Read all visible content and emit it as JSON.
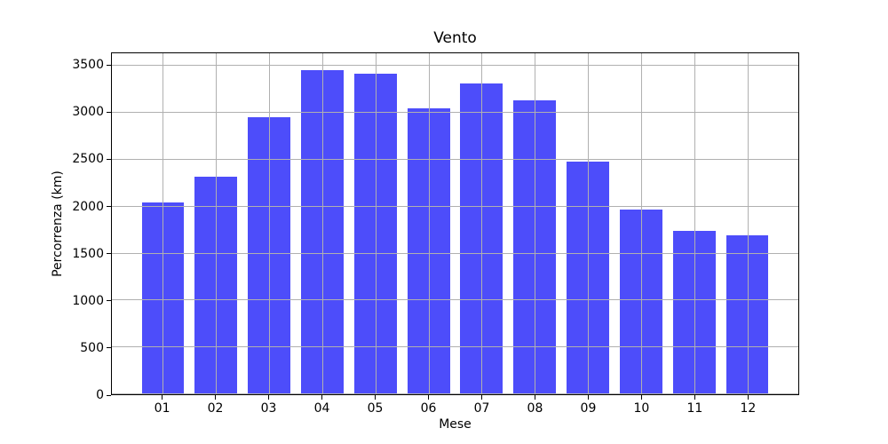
{
  "chart_data": {
    "type": "bar",
    "title": "Vento",
    "xlabel": "Mese",
    "ylabel": "Percorrenza (km)",
    "categories": [
      "01",
      "02",
      "03",
      "04",
      "05",
      "06",
      "07",
      "08",
      "09",
      "10",
      "11",
      "12"
    ],
    "values": [
      2040,
      2315,
      2950,
      3455,
      3420,
      3050,
      3310,
      3130,
      2475,
      1970,
      1740,
      1690
    ],
    "yticks": [
      0,
      500,
      1000,
      1500,
      2000,
      2500,
      3000,
      3500
    ],
    "ylim": [
      0,
      3634
    ],
    "xlim": [
      0.04,
      12.96
    ],
    "bar_data_width": 0.8,
    "grid": true,
    "legend": false,
    "colors": {
      "bar": "#4d4dfa",
      "grid": "#b0b0b0",
      "spine": "#000000",
      "background": "#ffffff",
      "text": "#000000"
    }
  }
}
